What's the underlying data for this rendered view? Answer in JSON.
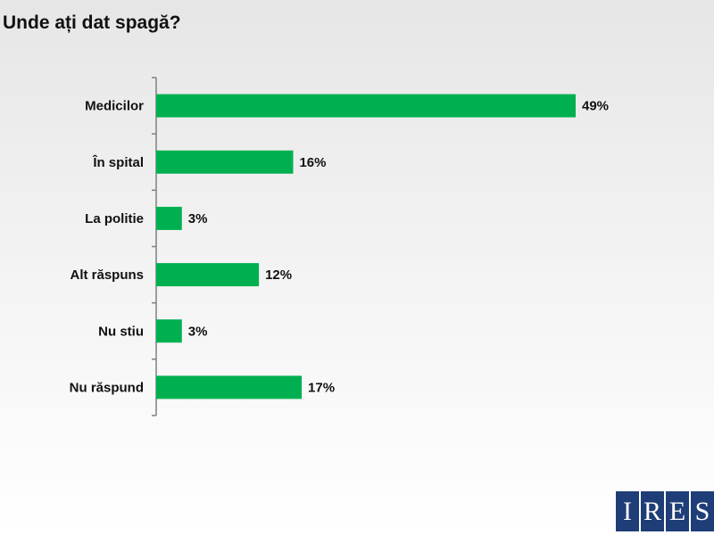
{
  "title": "Unde ați dat spagă?",
  "colors": {
    "bar": "#00b050",
    "axis": "#808080"
  },
  "chart_data": {
    "type": "bar",
    "orientation": "horizontal",
    "title": "Unde ați dat spagă?",
    "categories": [
      "Medicilor",
      "În spital",
      "La politie",
      "Alt răspuns",
      "Nu stiu",
      "Nu răspund"
    ],
    "values": [
      49,
      16,
      3,
      12,
      3,
      17
    ],
    "value_labels": [
      "49%",
      "16%",
      "3%",
      "12%",
      "3%",
      "17%"
    ],
    "xlim": [
      0,
      49
    ],
    "xlabel": "",
    "ylabel": "",
    "grid": false,
    "legend": "none"
  },
  "logo": {
    "letters": [
      "I",
      "R",
      "E",
      "S"
    ]
  }
}
